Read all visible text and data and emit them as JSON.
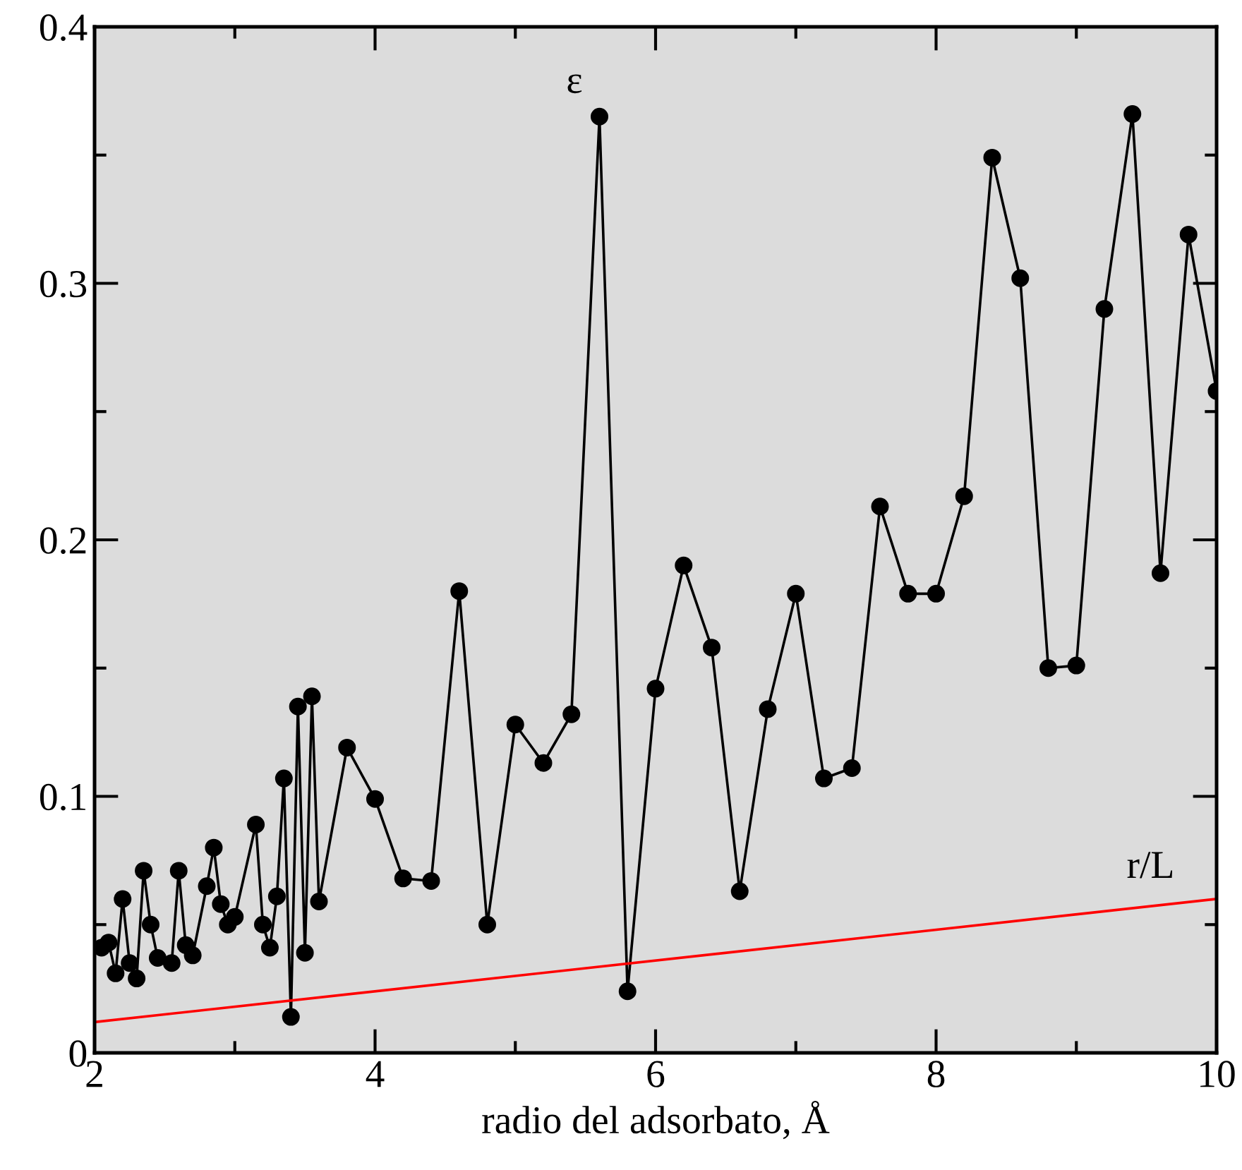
{
  "chart_data": {
    "type": "line",
    "xlabel": "radio del adsorbato, Å",
    "xlim": [
      2,
      10
    ],
    "ylim": [
      0,
      0.4
    ],
    "xticks": [
      2,
      4,
      6,
      8,
      10
    ],
    "yticks": [
      0,
      0.1,
      0.2,
      0.3,
      0.4
    ],
    "series": [
      {
        "name": "ε",
        "color": "#000000",
        "marker": "circle",
        "x": [
          2.05,
          2.1,
          2.15,
          2.2,
          2.25,
          2.3,
          2.35,
          2.4,
          2.45,
          2.55,
          2.6,
          2.65,
          2.7,
          2.8,
          2.85,
          2.9,
          2.95,
          3.0,
          3.15,
          3.2,
          3.25,
          3.3,
          3.35,
          3.4,
          3.45,
          3.5,
          3.55,
          3.6,
          3.8,
          4.0,
          4.2,
          4.4,
          4.6,
          4.8,
          5.0,
          5.2,
          5.4,
          5.6,
          5.8,
          6.0,
          6.2,
          6.4,
          6.6,
          6.8,
          7.0,
          7.2,
          7.4,
          7.6,
          7.8,
          8.0,
          8.2,
          8.4,
          8.6,
          8.8,
          9.0,
          9.2,
          9.4,
          9.6,
          9.8,
          10.0
        ],
        "values": [
          0.041,
          0.043,
          0.031,
          0.06,
          0.035,
          0.029,
          0.071,
          0.05,
          0.037,
          0.035,
          0.071,
          0.042,
          0.038,
          0.065,
          0.08,
          0.058,
          0.05,
          0.053,
          0.089,
          0.05,
          0.041,
          0.061,
          0.107,
          0.014,
          0.135,
          0.039,
          0.139,
          0.059,
          0.119,
          0.099,
          0.068,
          0.067,
          0.18,
          0.05,
          0.128,
          0.113,
          0.132,
          0.365,
          0.024,
          0.142,
          0.19,
          0.158,
          0.063,
          0.134,
          0.179,
          0.107,
          0.111,
          0.213,
          0.179,
          0.179,
          0.217,
          0.349,
          0.302,
          0.15,
          0.151,
          0.29,
          0.366,
          0.187,
          0.319,
          0.258
        ]
      },
      {
        "name": "r/L",
        "color": "#ff0000",
        "marker": "none",
        "x": [
          2,
          10
        ],
        "values": [
          0.012,
          0.06
        ]
      }
    ],
    "grid": false,
    "legend": false,
    "line_style": "solid"
  }
}
